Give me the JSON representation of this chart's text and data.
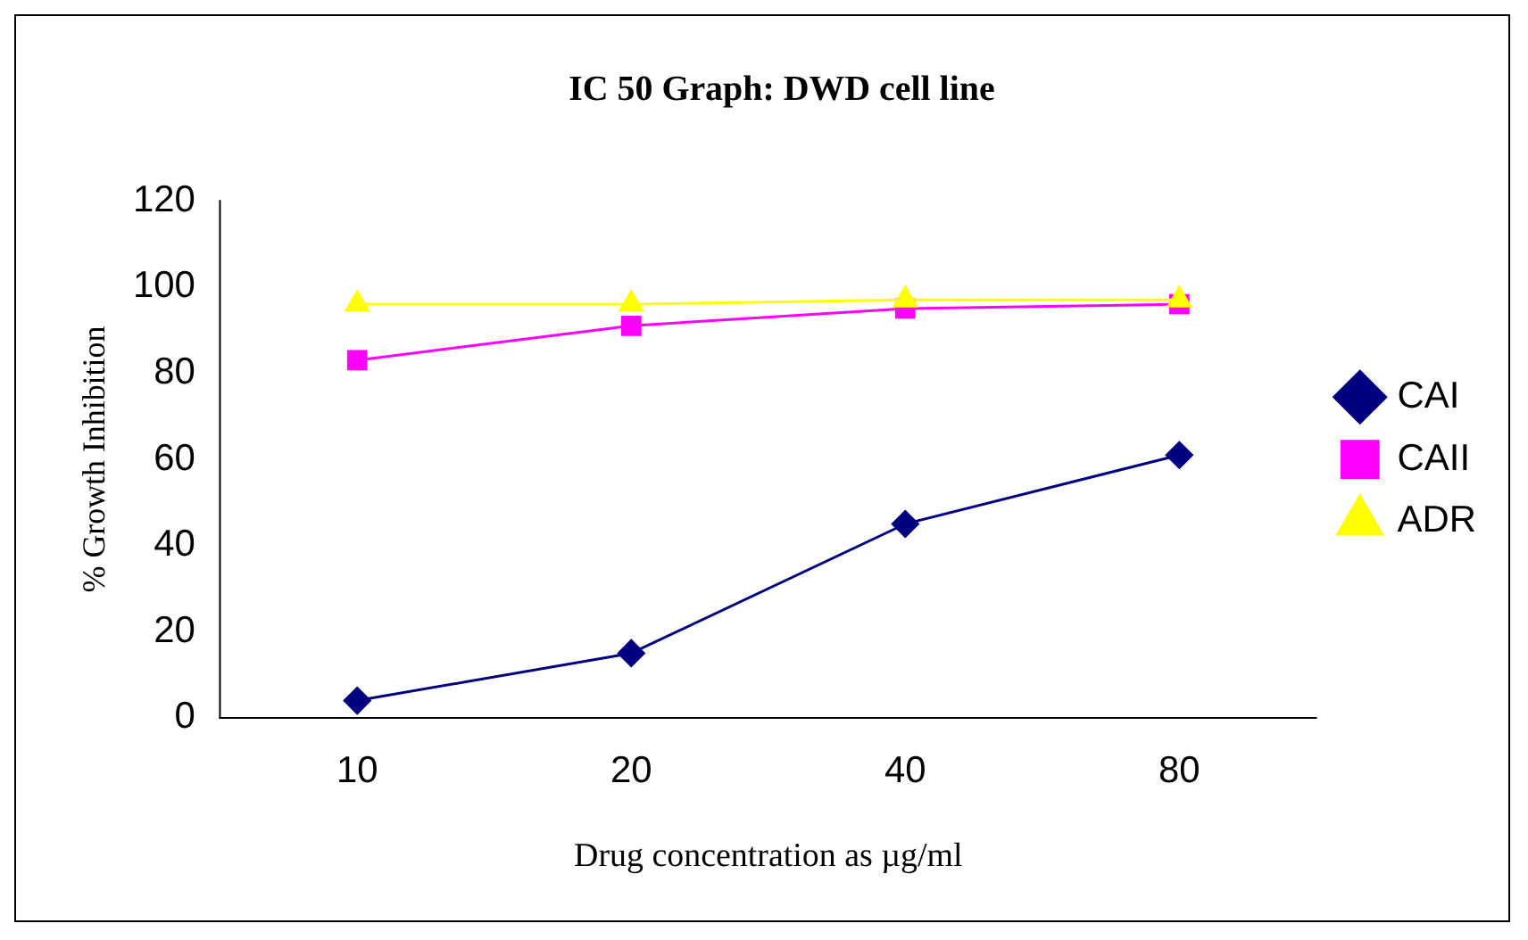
{
  "chart_data": {
    "type": "line",
    "title": "IC 50 Graph: DWD cell line",
    "xlabel": "Drug concentration as µg/ml",
    "ylabel": "% Growth Inhibition",
    "categories": [
      "10",
      "20",
      "40",
      "80"
    ],
    "series": [
      {
        "name": "CAI",
        "color": "#000080",
        "marker": "diamond",
        "values": [
          4,
          15,
          45,
          61
        ]
      },
      {
        "name": "CAII",
        "color": "#ff00ff",
        "marker": "square",
        "values": [
          83,
          91,
          95,
          96
        ]
      },
      {
        "name": "ADR",
        "color": "#ffff00",
        "marker": "triangle",
        "values": [
          96,
          96,
          97,
          97
        ]
      }
    ],
    "ylim": [
      0,
      120
    ],
    "yticks": [
      0,
      20,
      40,
      60,
      80,
      100,
      120
    ],
    "grid": false,
    "legend": "right",
    "line_style": "solid"
  }
}
